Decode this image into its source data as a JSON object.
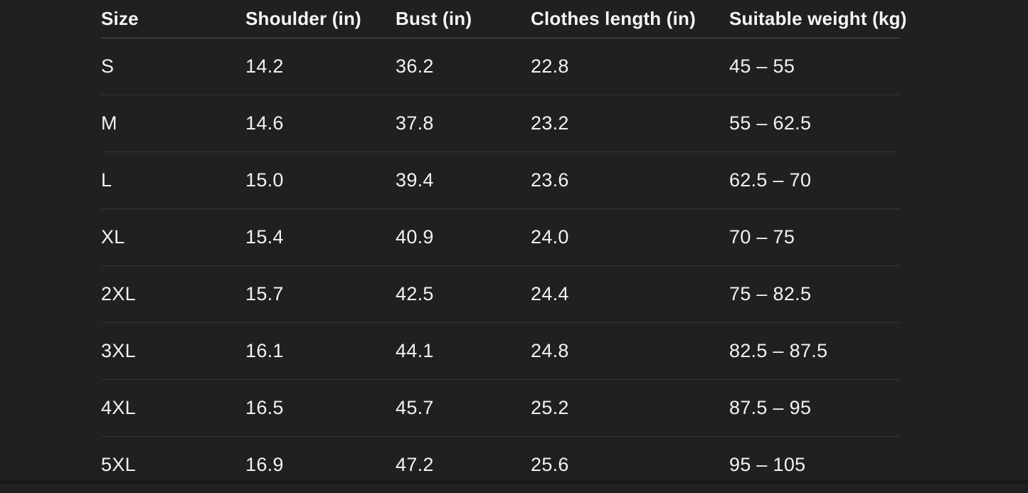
{
  "page": {
    "background_color": "#202022",
    "text_color": "#f2f2f4",
    "header_rule_color": "#55555a",
    "row_rule_color": "#343437"
  },
  "table": {
    "columns": [
      {
        "key": "size",
        "label": "Size"
      },
      {
        "key": "shoulder",
        "label": "Shoulder (in)"
      },
      {
        "key": "bust",
        "label": "Bust (in)"
      },
      {
        "key": "length",
        "label": "Clothes length (in)"
      },
      {
        "key": "weight",
        "label": "Suitable weight (kg)"
      }
    ],
    "rows": [
      {
        "size": "S",
        "shoulder": "14.2",
        "bust": "36.2",
        "length": "22.8",
        "weight": "45 – 55"
      },
      {
        "size": "M",
        "shoulder": "14.6",
        "bust": "37.8",
        "length": "23.2",
        "weight": "55 – 62.5"
      },
      {
        "size": "L",
        "shoulder": "15.0",
        "bust": "39.4",
        "length": "23.6",
        "weight": "62.5 – 70"
      },
      {
        "size": "XL",
        "shoulder": "15.4",
        "bust": "40.9",
        "length": "24.0",
        "weight": "70 – 75"
      },
      {
        "size": "2XL",
        "shoulder": "15.7",
        "bust": "42.5",
        "length": "24.4",
        "weight": "75 – 82.5"
      },
      {
        "size": "3XL",
        "shoulder": "16.1",
        "bust": "44.1",
        "length": "24.8",
        "weight": "82.5 – 87.5"
      },
      {
        "size": "4XL",
        "shoulder": "16.5",
        "bust": "45.7",
        "length": "25.2",
        "weight": "87.5 – 95"
      },
      {
        "size": "5XL",
        "shoulder": "16.9",
        "bust": "47.2",
        "length": "25.6",
        "weight": "95 – 105"
      }
    ]
  }
}
